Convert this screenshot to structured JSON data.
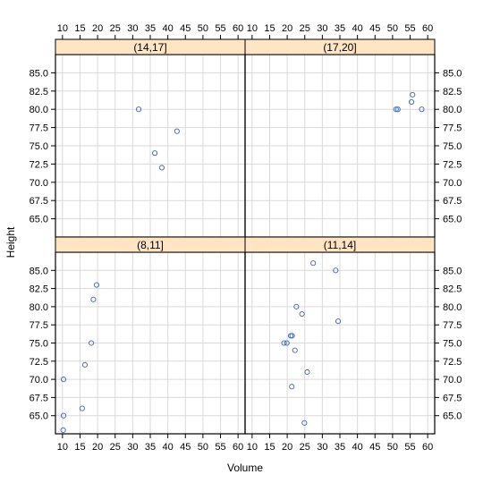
{
  "chart_data": {
    "type": "scatter",
    "layout": "2x2 lattice, shared axes",
    "xlabel": "Volume",
    "ylabel": "Height",
    "xlim": [
      8,
      62
    ],
    "ylim": [
      62.5,
      87.5
    ],
    "x_ticks": [
      "10",
      "15",
      "20",
      "25",
      "30",
      "35",
      "40",
      "45",
      "50",
      "55",
      "60"
    ],
    "y_ticks": [
      "65.0",
      "67.5",
      "70.0",
      "72.5",
      "75.0",
      "77.5",
      "80.0",
      "82.5",
      "85.0"
    ],
    "grid": true,
    "point_color": "#3b63b5",
    "strip_color": "#ffe5c4",
    "panels": [
      {
        "strip": "(14,17]",
        "position": "top-left",
        "points": [
          [
            31.7,
            80
          ],
          [
            36.3,
            74
          ],
          [
            38.3,
            72
          ],
          [
            42.6,
            77
          ]
        ]
      },
      {
        "strip": "(17,20]",
        "position": "top-right",
        "points": [
          [
            51.0,
            80
          ],
          [
            51.5,
            80
          ],
          [
            55.4,
            81
          ],
          [
            55.7,
            82
          ],
          [
            58.3,
            80
          ]
        ]
      },
      {
        "strip": "(8,11]",
        "position": "bottom-left",
        "points": [
          [
            10.3,
            70
          ],
          [
            10.3,
            65
          ],
          [
            10.2,
            63
          ],
          [
            16.4,
            72
          ],
          [
            18.8,
            81
          ],
          [
            19.7,
            83
          ],
          [
            15.6,
            66
          ],
          [
            18.2,
            75
          ]
        ]
      },
      {
        "strip": "(11,14]",
        "position": "bottom-right",
        "points": [
          [
            22.6,
            80
          ],
          [
            19.9,
            75
          ],
          [
            24.2,
            79
          ],
          [
            21.0,
            76
          ],
          [
            21.4,
            76
          ],
          [
            21.3,
            69
          ],
          [
            19.1,
            75
          ],
          [
            22.2,
            74
          ],
          [
            33.8,
            85
          ],
          [
            27.4,
            86
          ],
          [
            25.7,
            71
          ],
          [
            24.9,
            64
          ],
          [
            34.5,
            78
          ]
        ]
      }
    ]
  }
}
